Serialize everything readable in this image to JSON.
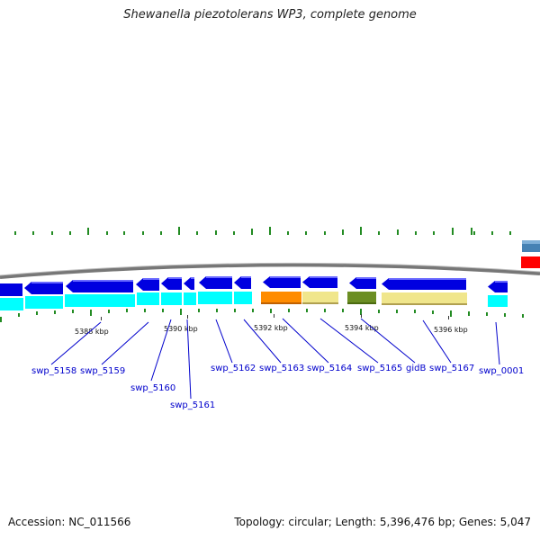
{
  "title": "Shewanella piezotolerans WP3, complete genome",
  "footer": {
    "accession": "Accession: NC_011566",
    "summary": "Topology: circular; Length: 5,396,476 bp; Genes: 5,047"
  },
  "colors": {
    "backbone": "#808080",
    "strand_forward": "#0000e0",
    "strand_reverse": "#00ffff",
    "orange_feature": "#ff8c00",
    "khaki_feature": "#f0e68c",
    "olive_feature": "#6b8e23",
    "gene_label": "#0000cc",
    "gc_ticks": "#228b22",
    "edge_blue": "#4682b4",
    "edge_red": "#ff0000"
  },
  "ticks": [
    {
      "label": "5388 kbp"
    },
    {
      "label": "5390 kbp"
    },
    {
      "label": "5392 kbp"
    },
    {
      "label": "5394 kbp"
    },
    {
      "label": "5396 kbp"
    }
  ],
  "gene_labels": [
    {
      "label": "swp_5158"
    },
    {
      "label": "swp_5159"
    },
    {
      "label": "swp_5160"
    },
    {
      "label": "swp_5161"
    },
    {
      "label": "swp_5162"
    },
    {
      "label": "swp_5163"
    },
    {
      "label": "swp_5164"
    },
    {
      "label": "swp_5165"
    },
    {
      "label": "gidB"
    },
    {
      "label": "swp_5167"
    },
    {
      "label": "swp_0001"
    }
  ]
}
